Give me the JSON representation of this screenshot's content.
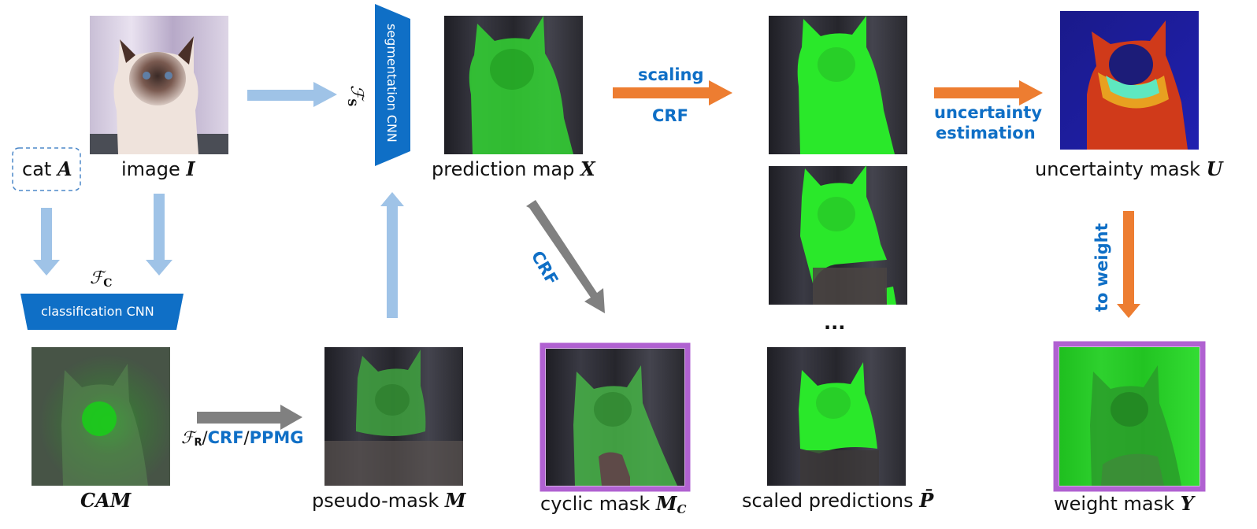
{
  "colors": {
    "light_blue_arrow": "#9fc3e7",
    "net_blue": "#0f6fc6",
    "orange": "#ed7d31",
    "gray": "#808080",
    "purple_frame": "#b061d1",
    "mask_green": "#32e632"
  },
  "labels": {
    "category_word": "cat",
    "category_symbol": "A",
    "image_word": "image",
    "image_symbol": "I",
    "prediction_word": "prediction map",
    "prediction_symbol": "X",
    "uncertainty_word": "uncertainty mask",
    "uncertainty_symbol": "U",
    "cam_symbol": "CAM",
    "pseudo_word": "pseudo-mask",
    "pseudo_symbol": "M",
    "cyclic_word": "cyclic mask",
    "cyclic_symbol": "M",
    "cyclic_sub": "C",
    "scaled_word": "scaled predictions",
    "scaled_symbol": "P̄",
    "ellipsis": "...",
    "weight_word": "weight mask",
    "weight_symbol": "Y"
  },
  "networks": {
    "classification_cnn": "classification CNN",
    "classification_fn": "ℱ",
    "classification_sub": "C",
    "segmentation_cnn": "segmentation CNN",
    "segmentation_fn": "ℱ",
    "segmentation_sub": "S"
  },
  "operations": {
    "scaling": "scaling",
    "crf_top": "CRF",
    "crf_diag": "CRF",
    "uncertainty_line1": "uncertainty",
    "uncertainty_line2": "estimation",
    "to_weight": "to weight",
    "refine_fn": "ℱ",
    "refine_sub": "R",
    "refine_sep1": "/",
    "refine_crf": "CRF",
    "refine_sep2": "/",
    "refine_ppmg": "PPMG"
  }
}
